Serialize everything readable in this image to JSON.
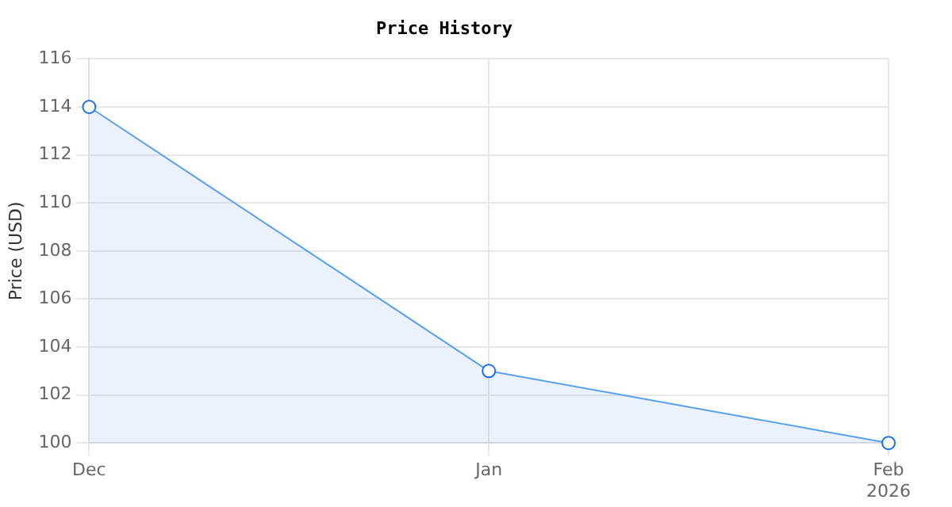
{
  "chart_data": {
    "type": "area",
    "title": "Price History",
    "ylabel": "Price (USD)",
    "x": [
      "2025-12",
      "2026-01",
      "2026-02"
    ],
    "series": [
      {
        "color": "#5aa0f0",
        "values": [
          114,
          103,
          100
        ]
      }
    ],
    "xlim": [
      "2025-12",
      "2026-02"
    ],
    "xticks": [
      {
        "value": "2025-12",
        "label": "Dec"
      },
      {
        "value": "2026-01",
        "label": "Jan"
      },
      {
        "value": "2026-02",
        "label": "Feb\n2026"
      }
    ],
    "ylim": [
      100,
      116
    ],
    "yticks": [
      100,
      102,
      104,
      106,
      108,
      110,
      112,
      114,
      116
    ],
    "grid": true,
    "legend": false,
    "marker": "circle",
    "line_style": "solid"
  }
}
